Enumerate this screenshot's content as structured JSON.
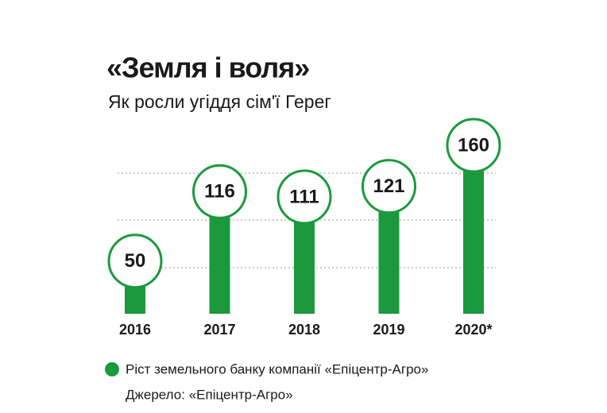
{
  "chart_data": {
    "type": "bar",
    "title": "«Земля і воля»",
    "subtitle": "Як росли угіддя сім'ї Герег",
    "categories": [
      "2016",
      "2017",
      "2018",
      "2019",
      "2020*"
    ],
    "series": [
      {
        "name": "Ріст земельного банку компанії «Епіцентр-Агро»",
        "color": "#1a9a3c",
        "values": [
          50,
          116,
          111,
          121,
          160
        ]
      }
    ],
    "ylim": [
      0,
      160
    ],
    "source": "Джерело: «Епіцентр-Агро»"
  }
}
